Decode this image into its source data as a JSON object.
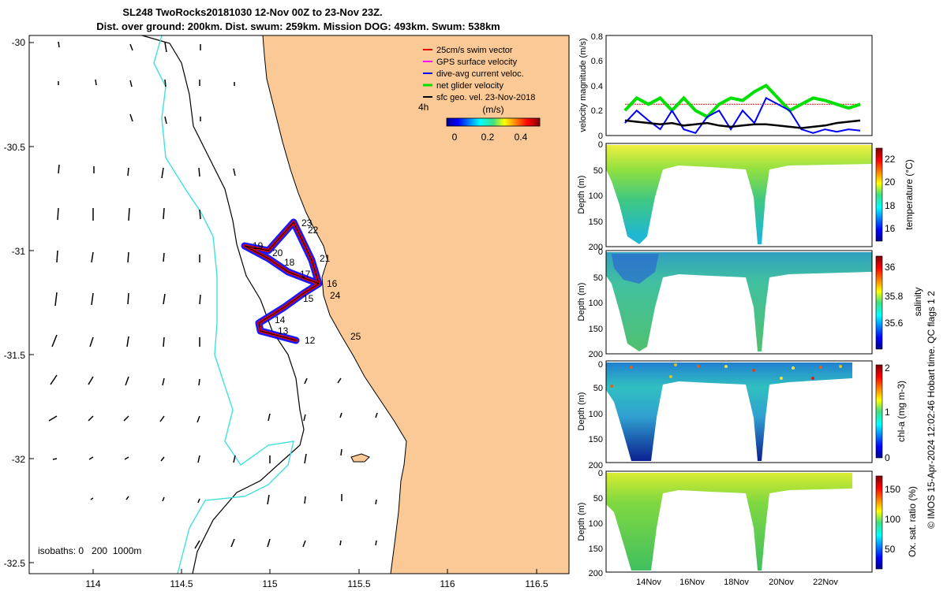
{
  "title_line1": "SL248 TwoRocks20181030 12-Nov 00Z to 23-Nov 23Z.",
  "title_line2": "Dist. over ground: 200km. Dist. swum: 259km. Mission DOG: 493km. Swum: 538km",
  "map": {
    "x_ticks": [
      "114",
      "114.5",
      "115",
      "115.5",
      "116",
      "116.5"
    ],
    "y_ticks": [
      "-30",
      "-30.5",
      "-31",
      "-31.5",
      "-32",
      "-32.5"
    ],
    "legend": [
      "25cm/s swim vector",
      "GPS surface velocity",
      "dive-avg current veloc.",
      "net glider velocity",
      "sfc geo. vel. 23-Nov-2018"
    ],
    "legend_colors": [
      "#e00000",
      "#ff00ff",
      "#0000ff",
      "#00e000",
      "#000000"
    ],
    "scale_label": "4h",
    "colorbar_label": "(m/s)",
    "colorbar_ticks": [
      "0",
      "0.2",
      "0.4"
    ],
    "isobaths": "isobaths: 0   200  1000m",
    "day_labels": [
      "12",
      "13",
      "14",
      "15",
      "16",
      "17",
      "18",
      "19",
      "20",
      "21",
      "22",
      "23",
      "24",
      "25"
    ],
    "land_color": "#fbc996",
    "isobath_200_color": "#40e0e0"
  },
  "side_note": "© IMOS 15-Apr-2024 12:02:46 Hobart time. QC flags 1  2",
  "chart_data": [
    {
      "type": "line",
      "name": "velocity magnitude panel",
      "ylabel": "velocity magnitude (m/s)",
      "ylim": [
        0,
        0.8
      ],
      "y_ticks": [
        "0",
        "0.2",
        "0.4",
        "0.6",
        "0.8"
      ],
      "x": [
        13,
        13.5,
        14,
        14.5,
        15,
        15.5,
        16,
        16.5,
        17,
        17.5,
        18,
        18.5,
        19,
        19.5,
        20,
        20.5,
        21,
        21.5,
        22,
        22.5,
        23
      ],
      "series": [
        {
          "label": "25cm/s swim vector",
          "color": "#e00000",
          "values": [
            0.25,
            0.25,
            0.25,
            0.25,
            0.25,
            0.25,
            0.25,
            0.25,
            0.25,
            0.25,
            0.25,
            0.25,
            0.25,
            0.25,
            0.25,
            0.25,
            0.25,
            0.25,
            0.25,
            0.25,
            0.25
          ]
        },
        {
          "label": "net glider velocity",
          "color": "#00e000",
          "values": [
            0.2,
            0.3,
            0.25,
            0.3,
            0.2,
            0.3,
            0.2,
            0.15,
            0.25,
            0.3,
            0.28,
            0.35,
            0.4,
            0.3,
            0.2,
            0.25,
            0.3,
            0.28,
            0.25,
            0.22,
            0.25
          ]
        },
        {
          "label": "dive-avg current veloc.",
          "color": "#0000ff",
          "values": [
            0.1,
            0.2,
            0.12,
            0.05,
            0.2,
            0.05,
            0.02,
            0.15,
            0.2,
            0.05,
            0.2,
            0.1,
            0.3,
            0.25,
            0.2,
            0.05,
            0.02,
            0.05,
            0.03,
            0.05,
            0.04
          ]
        },
        {
          "label": "sfc geo. vel.",
          "color": "#000000",
          "values": [
            0.12,
            0.11,
            0.1,
            0.09,
            0.1,
            0.08,
            0.09,
            0.1,
            0.08,
            0.07,
            0.08,
            0.09,
            0.09,
            0.08,
            0.07,
            0.06,
            0.07,
            0.08,
            0.1,
            0.11,
            0.12
          ]
        }
      ]
    },
    {
      "type": "heatmap",
      "name": "temperature section",
      "ylabel": "Depth (m)",
      "ylim": [
        200,
        0
      ],
      "y_ticks": [
        "0",
        "50",
        "100",
        "150",
        "200"
      ],
      "colorbar_label": "temperature (°C)",
      "colorbar_ticks": [
        "16",
        "18",
        "20",
        "22"
      ],
      "clim": [
        15,
        23
      ]
    },
    {
      "type": "heatmap",
      "name": "salinity section",
      "ylabel": "Depth (m)",
      "ylim": [
        200,
        0
      ],
      "y_ticks": [
        "0",
        "50",
        "100",
        "150",
        "200"
      ],
      "colorbar_label": "salinity",
      "colorbar_ticks": [
        "35.6",
        "35.8",
        "36"
      ],
      "clim": [
        35.45,
        36.1
      ]
    },
    {
      "type": "heatmap",
      "name": "chlorophyll section",
      "ylabel": "Depth (m)",
      "ylim": [
        200,
        0
      ],
      "y_ticks": [
        "0",
        "50",
        "100",
        "150",
        "200"
      ],
      "colorbar_label": "chl-a (mg m-3)",
      "colorbar_ticks": [
        "0",
        "1",
        "2"
      ],
      "clim": [
        0,
        2
      ]
    },
    {
      "type": "heatmap",
      "name": "oxygen section",
      "ylabel": "Depth (m)",
      "ylim": [
        200,
        0
      ],
      "y_ticks": [
        "0",
        "50",
        "100",
        "150",
        "200"
      ],
      "x_ticks": [
        "14Nov",
        "16Nov",
        "18Nov",
        "20Nov",
        "22Nov"
      ],
      "colorbar_label": "Ox. sat. ratio (%)",
      "colorbar_ticks": [
        "50",
        "100",
        "150"
      ],
      "clim": [
        20,
        175
      ]
    }
  ]
}
